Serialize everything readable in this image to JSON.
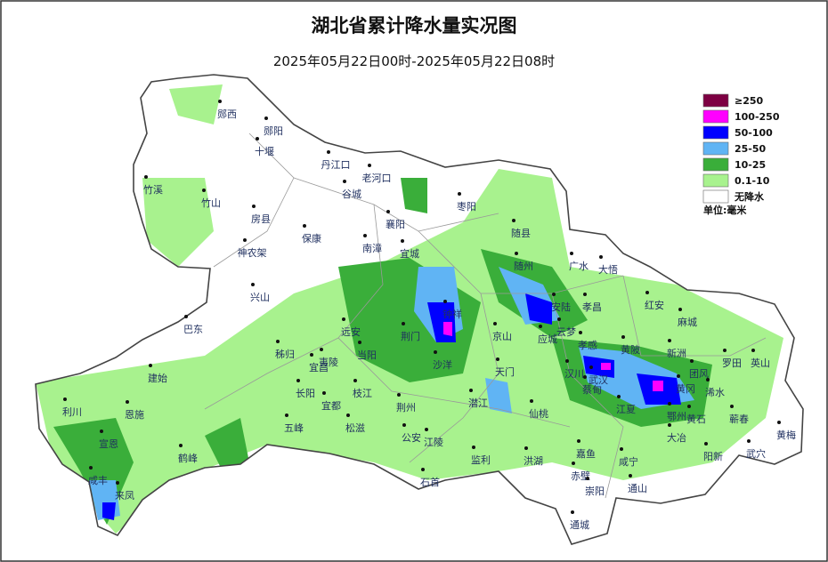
{
  "title": "湖北省累计降水量实况图",
  "subtitle": "2025年05月22日00时-2025年05月22日08时",
  "legend": {
    "items": [
      {
        "label": "≥250",
        "color": "#7d0042"
      },
      {
        "label": "100-250",
        "color": "#ff00ff"
      },
      {
        "label": "50-100",
        "color": "#0000ff"
      },
      {
        "label": "25-50",
        "color": "#60b4f4"
      },
      {
        "label": "10-25",
        "color": "#3aae3a"
      },
      {
        "label": "0.1-10",
        "color": "#a8f28e"
      },
      {
        "label": "无降水",
        "color": "#ffffff"
      }
    ],
    "unit": "单位:毫米"
  },
  "cities": [
    "郧西",
    "郧阳",
    "十堰",
    "丹江口",
    "老河口",
    "谷城",
    "竹溪",
    "竹山",
    "房县",
    "枣阳",
    "襄阳",
    "随县",
    "保康",
    "南漳",
    "宜城",
    "神农架",
    "广水",
    "大悟",
    "随州",
    "兴山",
    "安陆",
    "孝昌",
    "红安",
    "钟祥",
    "麻城",
    "巴东",
    "远安",
    "荆门",
    "京山",
    "云梦",
    "应城",
    "孝感",
    "黄陂",
    "新洲",
    "秭归",
    "夷陵",
    "当阳",
    "宜昌",
    "沙洋",
    "罗田",
    "英山",
    "汉川",
    "武汉",
    "蔡甸",
    "团风",
    "天门",
    "黄冈",
    "建始",
    "浠水",
    "长阳",
    "枝江",
    "潜江",
    "荆州",
    "宜都",
    "仙桃",
    "江夏",
    "鄂州",
    "利川",
    "恩施",
    "蕲春",
    "黄石",
    "五峰",
    "松滋",
    "公安",
    "江陵",
    "大冶",
    "黄梅",
    "宣恩",
    "鹤峰",
    "监利",
    "洪湖",
    "阳新",
    "武穴",
    "嘉鱼",
    "咸宁",
    "赤壁",
    "石首",
    "咸丰",
    "崇阳",
    "通山",
    "来凤",
    "通城"
  ]
}
